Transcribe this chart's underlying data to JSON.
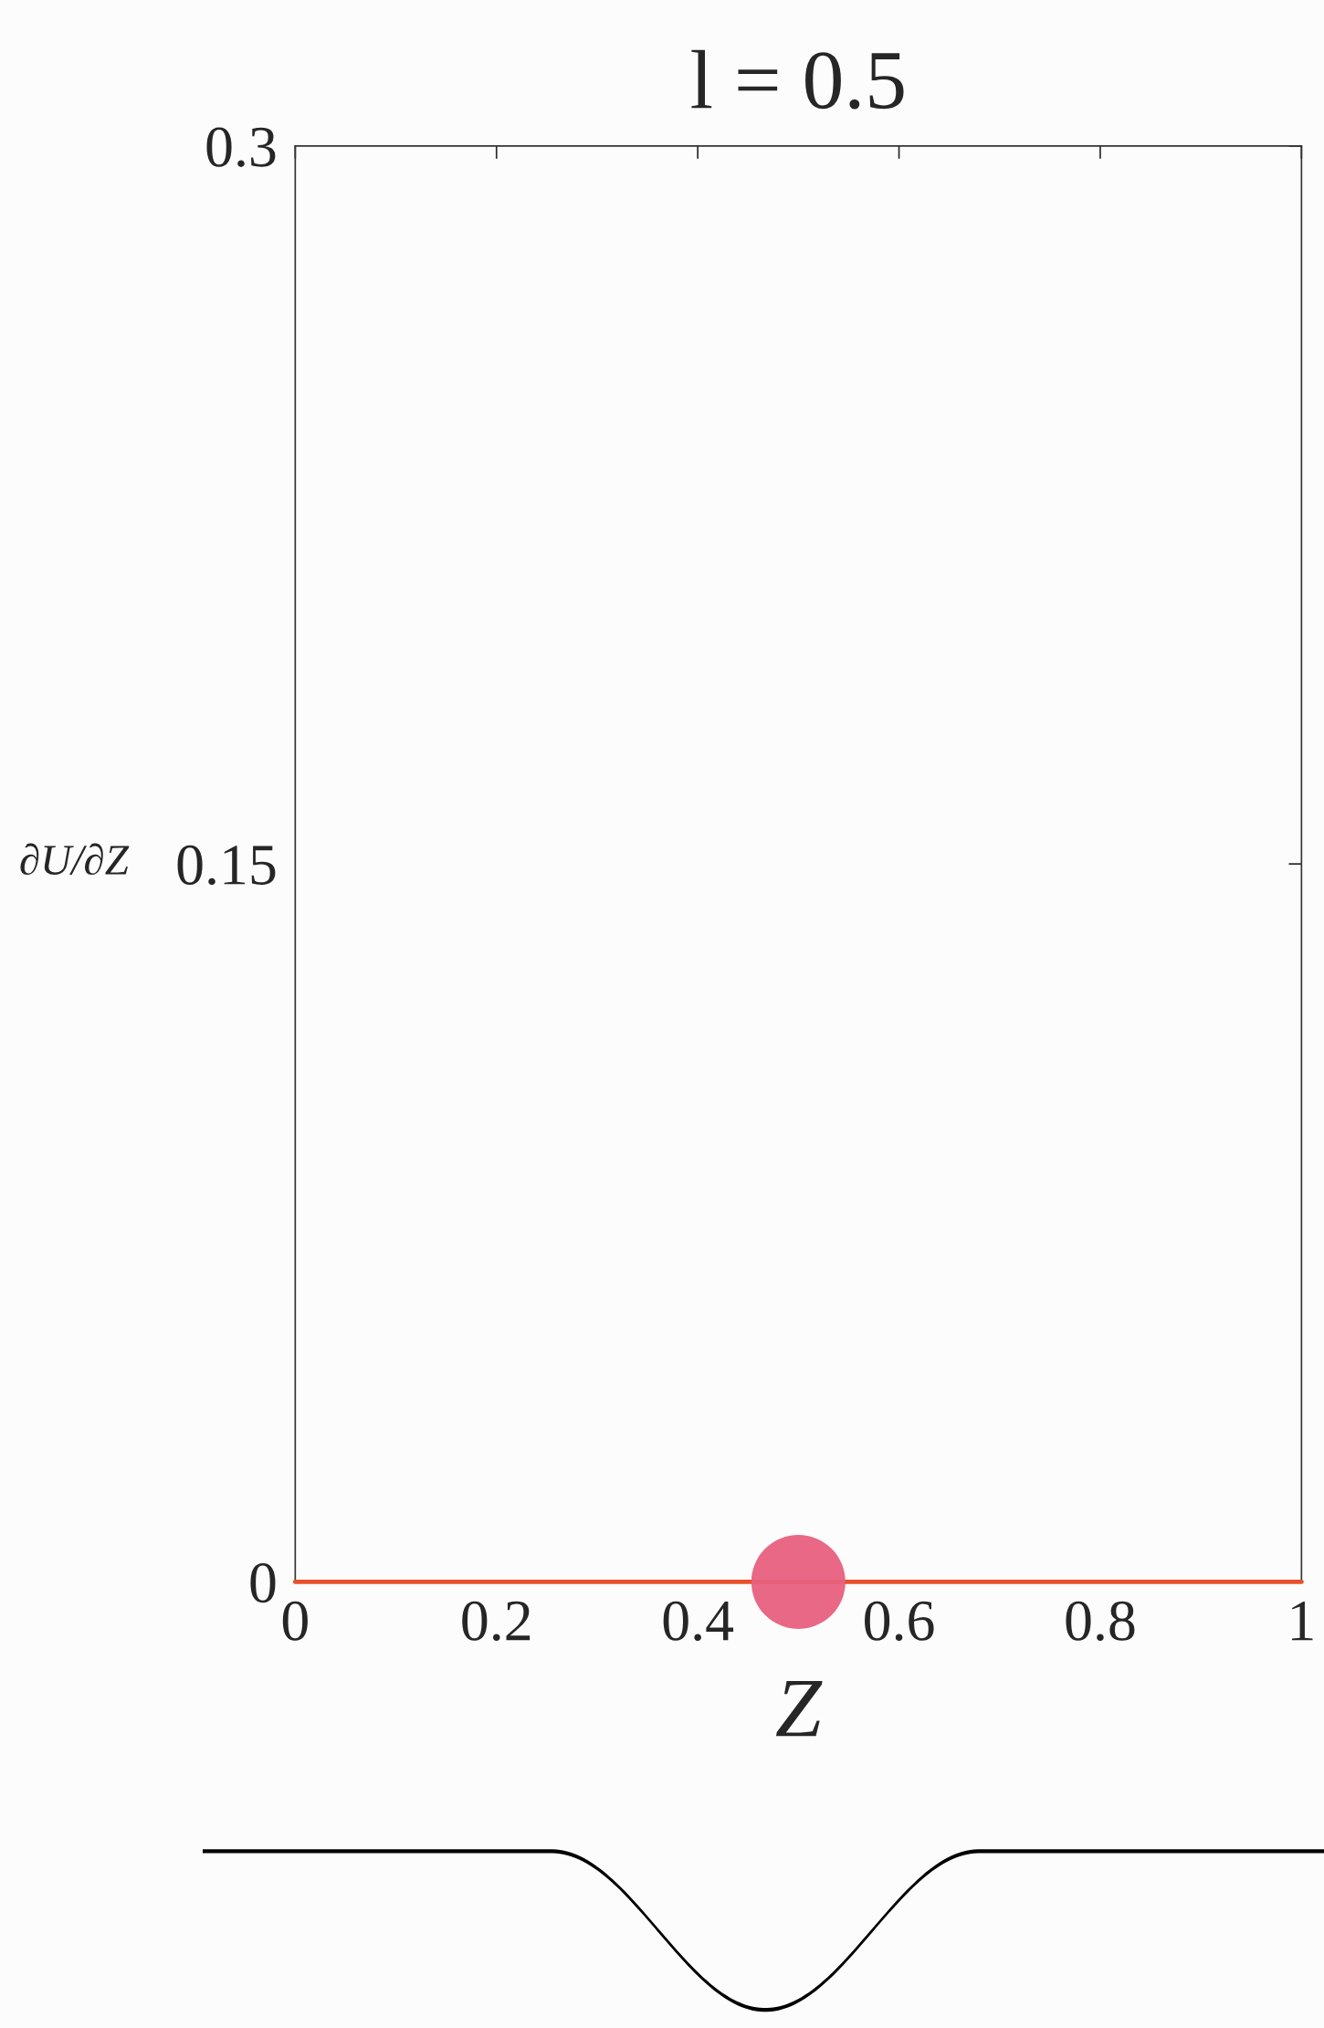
{
  "chart_data": {
    "type": "line",
    "title": "l = 0.5",
    "xlabel": "Z",
    "ylabel": "∂U/∂Z",
    "series": [
      {
        "color": "#e8502a",
        "x": [
          0,
          1
        ],
        "values": [
          0,
          0
        ]
      },
      {
        "type": "scatter",
        "color": "#e8607e",
        "x": [
          0.5
        ],
        "values": [
          0
        ]
      }
    ],
    "xlim": [
      0,
      1
    ],
    "xticks": [
      0,
      0.2,
      0.4,
      0.6,
      0.8,
      1
    ],
    "ylim": [
      0,
      0.3
    ],
    "yticks": [
      0,
      0.15,
      0.3
    ],
    "grid": false,
    "legend": false
  }
}
